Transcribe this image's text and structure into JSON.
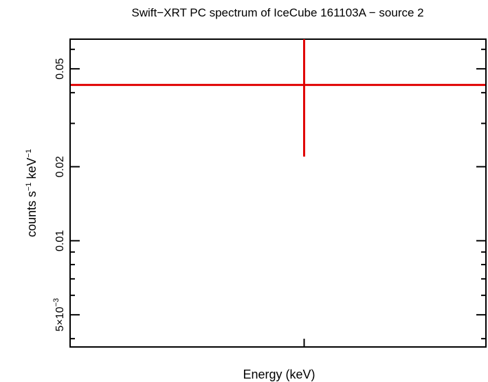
{
  "chart_data": {
    "type": "scatter",
    "title": "Swift−XRT PC spectrum of IceCube 161103A − source 2",
    "xlabel": "Energy (keV)",
    "ylabel": {
      "base": "counts s",
      "sup1": "−1",
      "mid": " keV",
      "sup2": "−1"
    },
    "y_scale": "log",
    "ylim": [
      0.0037,
      0.066
    ],
    "y_major_ticks": [
      {
        "value": 0.005,
        "label_base": "5×10",
        "label_sup": "−3"
      },
      {
        "value": 0.01,
        "label_base": "0.01",
        "label_sup": ""
      },
      {
        "value": 0.02,
        "label_base": "0.02",
        "label_sup": ""
      },
      {
        "value": 0.05,
        "label_base": "0.05",
        "label_sup": ""
      }
    ],
    "y_minor_ticks": [
      0.004,
      0.006,
      0.007,
      0.008,
      0.009,
      0.03,
      0.04,
      0.06
    ],
    "x_ticks": [
      "center"
    ],
    "series": [
      {
        "name": "source 2",
        "color": "#e00000",
        "points": [
          {
            "y": 0.043,
            "y_low": 0.022,
            "y_high": 0.066,
            "x_err": "full-range"
          }
        ]
      }
    ]
  },
  "colors": {
    "data": "#e00000",
    "axes": "#000000",
    "background": "#ffffff"
  }
}
